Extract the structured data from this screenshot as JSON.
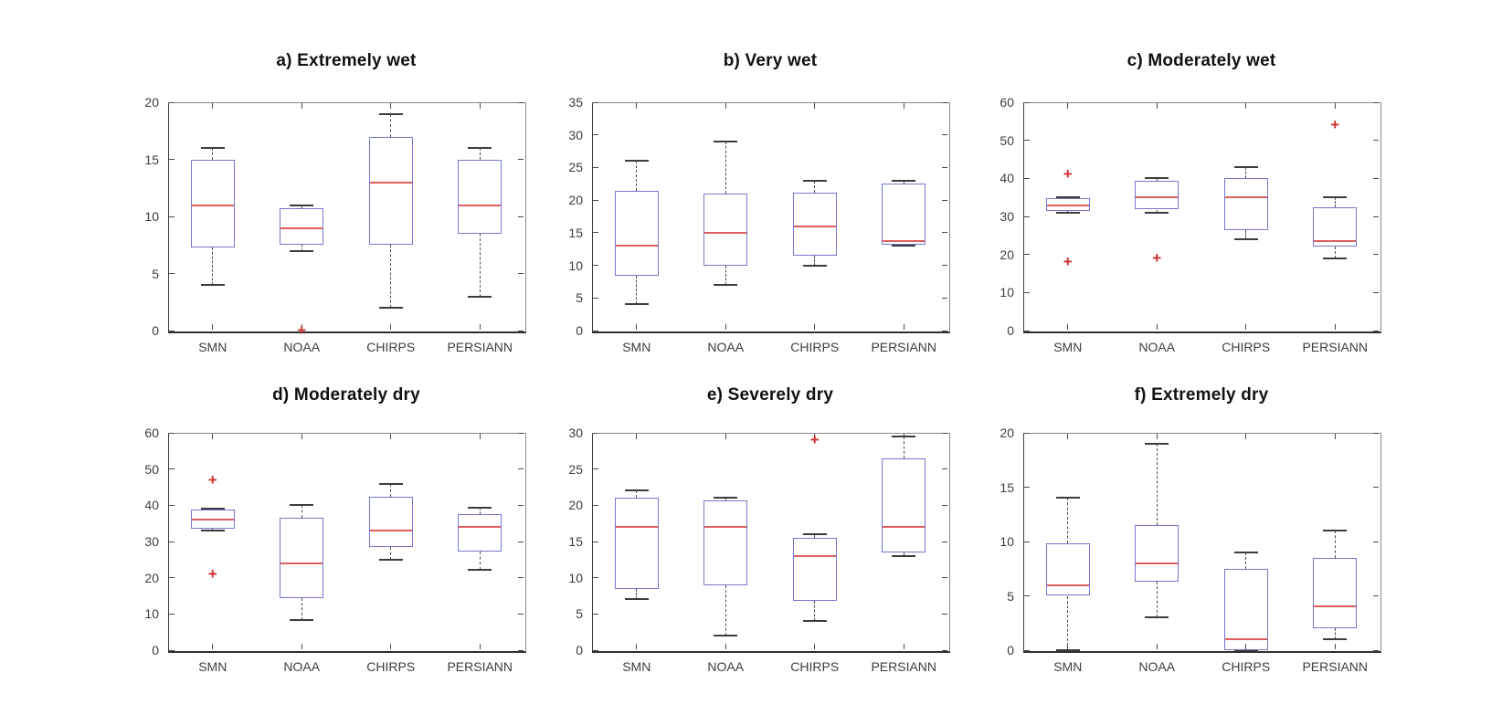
{
  "figure": {
    "type": "boxplot-grid",
    "outlier_marker": "+",
    "categories": [
      "SMN",
      "NOAA",
      "CHIRPS",
      "PERSIANN"
    ],
    "colors": {
      "box_edge": "#7577d0",
      "median": "#df5e5e",
      "whisker": "#4d4d4d",
      "whisker_cap": "#3c3c3c",
      "outlier": "#cf2f2f",
      "frame": "#8a8a8a",
      "axis": "#3f3f3f",
      "tick_label": "#3d3d3d",
      "title": "#111111",
      "background": "#ffffff"
    }
  },
  "chart_data": [
    {
      "type": "boxplot",
      "panel": "a",
      "title": "a) Extremely wet",
      "ylim": [
        0,
        20
      ],
      "yticks": [
        0,
        5,
        10,
        15,
        20
      ],
      "categories": [
        "SMN",
        "NOAA",
        "CHIRPS",
        "PERSIANN"
      ],
      "boxes": [
        {
          "category": "SMN",
          "whisker_low": 4,
          "q1": 7.3,
          "median": 11,
          "q3": 15,
          "whisker_high": 16,
          "outliers": []
        },
        {
          "category": "NOAA",
          "whisker_low": 7,
          "q1": 7.5,
          "median": 9,
          "q3": 10.7,
          "whisker_high": 11,
          "outliers": [
            0
          ]
        },
        {
          "category": "CHIRPS",
          "whisker_low": 2,
          "q1": 7.5,
          "median": 13,
          "q3": 17,
          "whisker_high": 19,
          "outliers": []
        },
        {
          "category": "PERSIANN",
          "whisker_low": 3,
          "q1": 8.5,
          "median": 11,
          "q3": 15,
          "whisker_high": 16,
          "outliers": []
        }
      ]
    },
    {
      "type": "boxplot",
      "panel": "b",
      "title": "b) Very wet",
      "ylim": [
        0,
        35
      ],
      "yticks": [
        0,
        5,
        10,
        15,
        20,
        25,
        30,
        35
      ],
      "categories": [
        "SMN",
        "NOAA",
        "CHIRPS",
        "PERSIANN"
      ],
      "boxes": [
        {
          "category": "SMN",
          "whisker_low": 4,
          "q1": 8.4,
          "median": 13,
          "q3": 21.4,
          "whisker_high": 26,
          "outliers": []
        },
        {
          "category": "NOAA",
          "whisker_low": 7,
          "q1": 10,
          "median": 15,
          "q3": 21,
          "whisker_high": 29,
          "outliers": []
        },
        {
          "category": "CHIRPS",
          "whisker_low": 10,
          "q1": 11.5,
          "median": 16,
          "q3": 21.2,
          "whisker_high": 23,
          "outliers": []
        },
        {
          "category": "PERSIANN",
          "whisker_low": 13,
          "q1": 13.2,
          "median": 13.7,
          "q3": 22.5,
          "whisker_high": 23,
          "outliers": []
        }
      ]
    },
    {
      "type": "boxplot",
      "panel": "c",
      "title": "c) Moderately wet",
      "ylim": [
        0,
        60
      ],
      "yticks": [
        0,
        10,
        20,
        30,
        40,
        50,
        60
      ],
      "categories": [
        "SMN",
        "NOAA",
        "CHIRPS",
        "PERSIANN"
      ],
      "boxes": [
        {
          "category": "SMN",
          "whisker_low": 31,
          "q1": 31.4,
          "median": 33,
          "q3": 34.8,
          "whisker_high": 35,
          "outliers": [
            41,
            18
          ]
        },
        {
          "category": "NOAA",
          "whisker_low": 31,
          "q1": 31.8,
          "median": 35,
          "q3": 39.4,
          "whisker_high": 40,
          "outliers": [
            19
          ]
        },
        {
          "category": "CHIRPS",
          "whisker_low": 24,
          "q1": 26.5,
          "median": 35,
          "q3": 40,
          "whisker_high": 43,
          "outliers": []
        },
        {
          "category": "PERSIANN",
          "whisker_low": 19,
          "q1": 22,
          "median": 23.5,
          "q3": 32.5,
          "whisker_high": 35,
          "outliers": [
            54
          ]
        }
      ]
    },
    {
      "type": "boxplot",
      "panel": "d",
      "title": "d) Moderately dry",
      "ylim": [
        0,
        60
      ],
      "yticks": [
        0,
        10,
        20,
        30,
        40,
        50,
        60
      ],
      "categories": [
        "SMN",
        "NOAA",
        "CHIRPS",
        "PERSIANN"
      ],
      "boxes": [
        {
          "category": "SMN",
          "whisker_low": 33,
          "q1": 33.6,
          "median": 36,
          "q3": 38.8,
          "whisker_high": 39,
          "outliers": [
            47,
            21
          ]
        },
        {
          "category": "NOAA",
          "whisker_low": 8.3,
          "q1": 14.3,
          "median": 24,
          "q3": 36.5,
          "whisker_high": 40,
          "outliers": []
        },
        {
          "category": "CHIRPS",
          "whisker_low": 25,
          "q1": 28.5,
          "median": 33,
          "q3": 42.3,
          "whisker_high": 46,
          "outliers": []
        },
        {
          "category": "PERSIANN",
          "whisker_low": 22.3,
          "q1": 27.2,
          "median": 34,
          "q3": 37.5,
          "whisker_high": 39.3,
          "outliers": []
        }
      ]
    },
    {
      "type": "boxplot",
      "panel": "e",
      "title": "e) Severely dry",
      "ylim": [
        0,
        30
      ],
      "yticks": [
        0,
        5,
        10,
        15,
        20,
        25,
        30
      ],
      "categories": [
        "SMN",
        "NOAA",
        "CHIRPS",
        "PERSIANN"
      ],
      "boxes": [
        {
          "category": "SMN",
          "whisker_low": 7,
          "q1": 8.5,
          "median": 17,
          "q3": 21,
          "whisker_high": 22,
          "outliers": []
        },
        {
          "category": "NOAA",
          "whisker_low": 2,
          "q1": 9,
          "median": 17,
          "q3": 20.7,
          "whisker_high": 21,
          "outliers": []
        },
        {
          "category": "CHIRPS",
          "whisker_low": 4,
          "q1": 6.8,
          "median": 13,
          "q3": 15.5,
          "whisker_high": 16,
          "outliers": [
            29
          ]
        },
        {
          "category": "PERSIANN",
          "whisker_low": 13,
          "q1": 13.5,
          "median": 17,
          "q3": 26.5,
          "whisker_high": 29.5,
          "outliers": []
        }
      ]
    },
    {
      "type": "boxplot",
      "panel": "f",
      "title": "f) Extremely dry",
      "ylim": [
        0,
        20
      ],
      "yticks": [
        0,
        5,
        10,
        15,
        20
      ],
      "categories": [
        "SMN",
        "NOAA",
        "CHIRPS",
        "PERSIANN"
      ],
      "boxes": [
        {
          "category": "SMN",
          "whisker_low": 0,
          "q1": 5,
          "median": 6,
          "q3": 9.8,
          "whisker_high": 14,
          "outliers": []
        },
        {
          "category": "NOAA",
          "whisker_low": 3,
          "q1": 6.3,
          "median": 8,
          "q3": 11.5,
          "whisker_high": 19,
          "outliers": []
        },
        {
          "category": "CHIRPS",
          "whisker_low": 0,
          "q1": 0,
          "median": 1,
          "q3": 7.5,
          "whisker_high": 9,
          "outliers": []
        },
        {
          "category": "PERSIANN",
          "whisker_low": 1,
          "q1": 2,
          "median": 4,
          "q3": 8.5,
          "whisker_high": 11,
          "outliers": []
        }
      ]
    }
  ]
}
